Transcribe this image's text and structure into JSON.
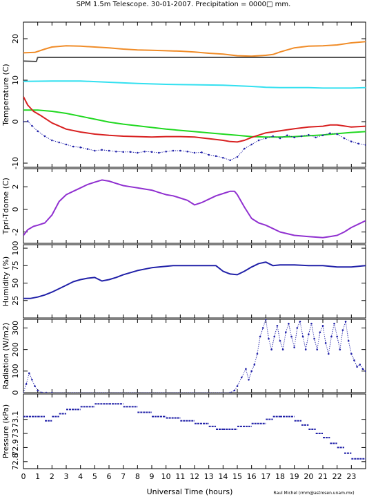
{
  "title": "SPM 1.5m Telescope. 30-01-2007. Precipitation = 0000□ mm.",
  "credit": "Raul Michel (rmm@astrosen.unam.mx)",
  "xlabel": "Universal Time (hours)",
  "chart_data": {
    "type": "line",
    "x_range": [
      0,
      24
    ],
    "x_ticks": [
      0,
      1,
      2,
      3,
      4,
      5,
      6,
      7,
      8,
      9,
      10,
      11,
      12,
      13,
      14,
      15,
      16,
      17,
      18,
      19,
      20,
      21,
      22,
      23
    ],
    "panels": [
      {
        "ylabel": "Temperature (C)",
        "ylim": [
          -11,
          24
        ],
        "y_ticks": [
          -10,
          0,
          10,
          20
        ],
        "series": [
          {
            "color": "#f08c28",
            "style": "line",
            "x": [
              0,
              0.8,
              1.5,
              2,
              3,
              4,
              5,
              6,
              7,
              8,
              9,
              10,
              11,
              12,
              13,
              14,
              15,
              16,
              16.5,
              17,
              17.5,
              18,
              18.5,
              19,
              20,
              21,
              22,
              23,
              24
            ],
            "y": [
              16.6,
              16.7,
              17.5,
              18,
              18.3,
              18.2,
              18,
              17.8,
              17.5,
              17.3,
              17.2,
              17.1,
              17,
              16.8,
              16.5,
              16.3,
              15.9,
              15.8,
              15.9,
              16,
              16.2,
              16.8,
              17.3,
              17.8,
              18.2,
              18.3,
              18.5,
              19,
              19.3
            ]
          },
          {
            "color": "#555555",
            "style": "line",
            "x": [
              0,
              0.9,
              1.0,
              24
            ],
            "y": [
              14.6,
              14.5,
              15.5,
              15.5
            ]
          },
          {
            "color": "#33e0f0",
            "style": "line",
            "x": [
              0,
              2,
              4,
              6,
              8,
              10,
              12,
              14,
              16,
              17,
              18,
              20,
              21,
              22,
              23,
              24
            ],
            "y": [
              9.7,
              9.8,
              9.8,
              9.5,
              9.2,
              9,
              8.9,
              8.8,
              8.5,
              8.3,
              8.2,
              8.2,
              8.1,
              8.1,
              8.1,
              8.2
            ]
          },
          {
            "color": "#20d820",
            "style": "line",
            "x": [
              0,
              1,
              2,
              3,
              4,
              5,
              6,
              7,
              8,
              9,
              10,
              11,
              12,
              13,
              14,
              15,
              16,
              17,
              18,
              19,
              20,
              21,
              22,
              23,
              24
            ],
            "y": [
              2.8,
              2.8,
              2.5,
              2,
              1.3,
              0.6,
              -0.1,
              -0.6,
              -1,
              -1.4,
              -1.8,
              -2.1,
              -2.4,
              -2.7,
              -3,
              -3.3,
              -3.6,
              -3.7,
              -3.7,
              -3.6,
              -3.4,
              -3.2,
              -2.9,
              -2.6,
              -2.4
            ]
          },
          {
            "color": "#d82020",
            "style": "line",
            "x": [
              0,
              0.3,
              0.7,
              1.2,
              2,
              3,
              4,
              5,
              6,
              7,
              8,
              9,
              10,
              11,
              12,
              13,
              14,
              14.5,
              15,
              15.5,
              16,
              17,
              18,
              19,
              20,
              21,
              21.5,
              22,
              23,
              24
            ],
            "y": [
              6,
              4,
              2.5,
              1.5,
              -0.3,
              -1.8,
              -2.5,
              -3,
              -3.3,
              -3.5,
              -3.6,
              -3.7,
              -3.6,
              -3.6,
              -3.7,
              -4.1,
              -4.5,
              -4.8,
              -4.9,
              -4.5,
              -3.8,
              -2.7,
              -2.2,
              -1.7,
              -1.3,
              -1.1,
              -0.8,
              -0.8,
              -1.3,
              -1.1
            ]
          },
          {
            "color": "#2020a8",
            "style": "dots",
            "x": [
              0,
              0.3,
              0.6,
              1,
              1.5,
              2,
              2.5,
              3,
              3.5,
              4,
              4.5,
              5,
              5.5,
              6,
              6.5,
              7,
              7.5,
              8,
              8.5,
              9,
              9.5,
              10,
              10.5,
              11,
              11.5,
              12,
              12.5,
              13,
              13.5,
              14,
              14.5,
              15,
              15.5,
              16,
              16.5,
              17,
              17.5,
              18,
              18.5,
              19,
              19.5,
              20,
              20.5,
              21,
              21.5,
              22,
              22.5,
              23,
              23.5,
              24
            ],
            "y": [
              0,
              0.1,
              -1,
              -2.3,
              -3.5,
              -4.5,
              -5,
              -5.5,
              -6,
              -6.2,
              -6.6,
              -7,
              -6.8,
              -7,
              -7.2,
              -7.3,
              -7.3,
              -7.5,
              -7.2,
              -7.3,
              -7.5,
              -7.2,
              -7,
              -7,
              -7.2,
              -7.5,
              -7.4,
              -8,
              -8.3,
              -8.7,
              -9.3,
              -8.5,
              -6.5,
              -5.5,
              -4.5,
              -4,
              -3.5,
              -4,
              -3.3,
              -3.8,
              -3.5,
              -3.2,
              -3.8,
              -3.3,
              -2.8,
              -3,
              -4,
              -4.8,
              -5.3,
              -5.6
            ]
          }
        ]
      },
      {
        "ylabel": "Tpri-Tdome (C)",
        "ylim": [
          -3,
          3.6
        ],
        "y_ticks": [
          -2,
          0,
          2
        ],
        "series": [
          {
            "color": "#9030d0",
            "style": "line",
            "x": [
              0,
              0.3,
              0.7,
              1,
              1.5,
              2,
              2.5,
              3,
              3.5,
              4,
              4.5,
              5,
              5.5,
              6,
              6.5,
              7,
              7.5,
              8,
              8.5,
              9,
              9.5,
              10,
              10.5,
              11,
              11.5,
              12,
              12.5,
              13,
              13.5,
              14,
              14.5,
              14.8,
              15,
              15.5,
              16,
              16.5,
              17,
              17.5,
              18,
              19,
              20,
              21,
              21.5,
              22,
              22.5,
              23,
              23.5,
              24
            ],
            "y": [
              -2.3,
              -1.8,
              -1.5,
              -1.4,
              -1.2,
              -0.5,
              0.7,
              1.3,
              1.6,
              1.9,
              2.2,
              2.4,
              2.6,
              2.5,
              2.3,
              2.1,
              2,
              1.9,
              1.8,
              1.7,
              1.5,
              1.3,
              1.2,
              1,
              0.8,
              0.4,
              0.6,
              0.9,
              1.2,
              1.4,
              1.6,
              1.6,
              1.3,
              0.2,
              -0.8,
              -1.2,
              -1.4,
              -1.7,
              -2,
              -2.3,
              -2.4,
              -2.5,
              -2.4,
              -2.3,
              -2,
              -1.6,
              -1.3,
              -1
            ]
          }
        ]
      },
      {
        "ylabel": "Humidity (%)",
        "ylim": [
          0,
          105
        ],
        "y_ticks": [
          25,
          50,
          75,
          100
        ],
        "series": [
          {
            "color": "#2020a8",
            "style": "line",
            "x": [
              0,
              0.5,
              1,
              1.5,
              2,
              2.5,
              3,
              3.5,
              4,
              4.5,
              5,
              5.5,
              6,
              6.5,
              7,
              7.5,
              8,
              8.5,
              9,
              9.5,
              10,
              10.5,
              11,
              11.5,
              12,
              12.5,
              13,
              13.5,
              14,
              14.5,
              15,
              15.5,
              16,
              16.5,
              17,
              17.5,
              18,
              19,
              20,
              21,
              22,
              23,
              24
            ],
            "y": [
              28,
              28,
              30,
              33,
              37,
              42,
              47,
              52,
              55,
              57,
              58,
              53,
              55,
              58,
              62,
              65,
              68,
              70,
              72,
              73,
              74,
              75,
              75,
              75,
              75,
              75,
              75,
              75,
              67,
              63,
              62,
              67,
              73,
              78,
              80,
              75,
              76,
              76,
              75,
              75,
              73,
              73,
              75
            ]
          }
        ]
      },
      {
        "ylabel": "Radiation (W/m2)",
        "ylim": [
          0,
          340
        ],
        "y_ticks": [
          0,
          100,
          200,
          300
        ],
        "series": [
          {
            "color": "#2020a8",
            "style": "dots",
            "x": [
              0,
              0.2,
              0.4,
              0.6,
              0.8,
              1,
              1.3,
              1.6,
              2,
              14.5,
              14.8,
              15,
              15.3,
              15.6,
              15.8,
              16,
              16.2,
              16.4,
              16.6,
              16.8,
              17,
              17.2,
              17.4,
              17.6,
              17.8,
              18,
              18.2,
              18.4,
              18.6,
              18.8,
              19,
              19.2,
              19.4,
              19.6,
              19.8,
              20,
              20.2,
              20.4,
              20.6,
              20.8,
              21,
              21.2,
              21.4,
              21.6,
              21.8,
              22,
              22.2,
              22.4,
              22.6,
              22.8,
              23,
              23.2,
              23.4,
              23.6,
              23.8,
              24
            ],
            "y": [
              0,
              40,
              90,
              60,
              30,
              10,
              0,
              0,
              0,
              0,
              10,
              30,
              70,
              110,
              60,
              100,
              130,
              180,
              260,
              300,
              340,
              250,
              200,
              260,
              310,
              240,
              200,
              280,
              320,
              260,
              210,
              300,
              330,
              260,
              200,
              270,
              320,
              250,
              200,
              280,
              310,
              230,
              180,
              260,
              320,
              260,
              200,
              290,
              330,
              240,
              180,
              150,
              120,
              130,
              110,
              100
            ]
          }
        ]
      },
      {
        "ylabel": "Pressure (kPa)",
        "ylim": [
          72.75,
          73.28
        ],
        "y_ticks": [
          72.8,
          72.9,
          73,
          73.1
        ],
        "y_tick_labels": [
          "72.8",
          "72.9",
          "73",
          "73.1"
        ],
        "series": [
          {
            "color": "#2020a8",
            "style": "steps",
            "x": [
              0,
              1,
              1.5,
              2,
              2.5,
              3,
              4,
              5,
              6,
              7,
              8,
              9,
              10,
              11,
              12,
              13,
              13.5,
              14,
              15,
              16,
              17,
              17.5,
              18,
              19,
              19.5,
              20,
              20.5,
              21,
              21.5,
              22,
              22.5,
              23,
              24
            ],
            "y": [
              73.12,
              73.12,
              73.09,
              73.12,
              73.14,
              73.17,
              73.19,
              73.21,
              73.21,
              73.19,
              73.15,
              73.12,
              73.11,
              73.09,
              73.07,
              73.05,
              73.03,
              73.03,
              73.05,
              73.07,
              73.1,
              73.12,
              73.12,
              73.09,
              73.06,
              73.03,
              73,
              72.97,
              72.93,
              72.9,
              72.86,
              72.82,
              72.82
            ]
          }
        ]
      }
    ]
  }
}
